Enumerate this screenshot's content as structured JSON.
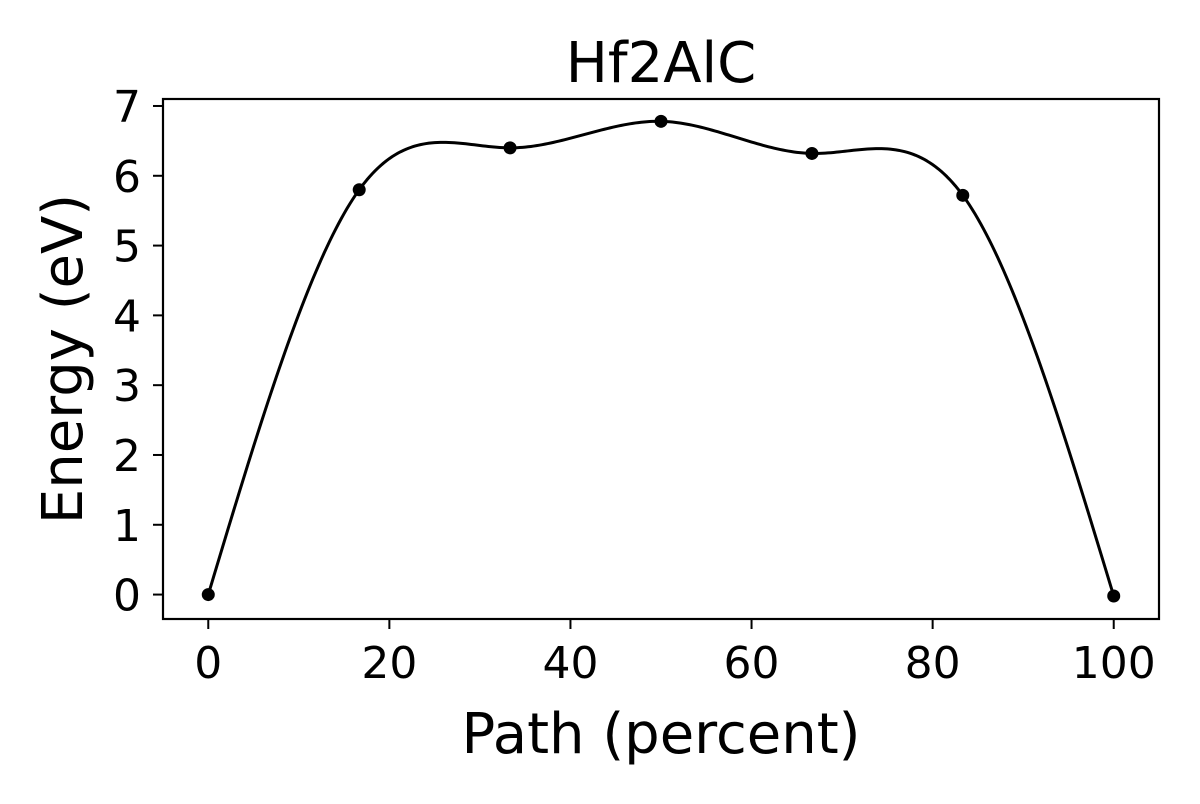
{
  "chart_data": {
    "type": "line",
    "title": "Hf2AlC",
    "xlabel": "Path (percent)",
    "ylabel": "Energy (eV)",
    "xlim": [
      -5,
      105
    ],
    "ylim": [
      -0.35,
      7.1
    ],
    "xticks": [
      0,
      20,
      40,
      60,
      80,
      100
    ],
    "yticks": [
      0,
      1,
      2,
      3,
      4,
      5,
      6,
      7
    ],
    "grid": false,
    "series": [
      {
        "x": [
          0,
          16.67,
          33.33,
          50,
          66.67,
          83.33,
          100
        ],
        "values": [
          0.0,
          5.8,
          6.4,
          6.78,
          6.32,
          5.72,
          -0.02
        ],
        "line_color": "#000000",
        "marker_color": "#000000"
      }
    ]
  }
}
